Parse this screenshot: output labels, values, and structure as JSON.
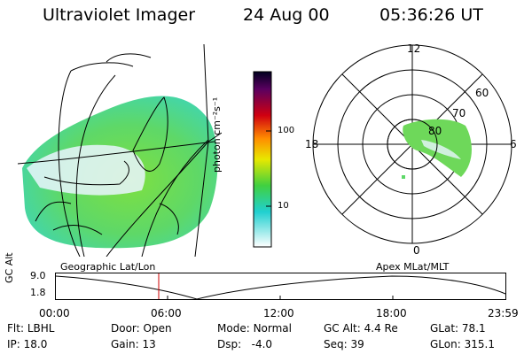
{
  "header": {
    "instrument": "Ultraviolet Imager",
    "date": "24 Aug 00",
    "time": "05:36:26 UT"
  },
  "colorbar": {
    "unit_label": "photon cm⁻²s⁻¹",
    "ticks": [
      "100",
      "10"
    ]
  },
  "polar": {
    "mlt_labels": {
      "top": "12",
      "left": "18",
      "right": "6",
      "bottom": "0"
    },
    "lat_labels": [
      "60",
      "70",
      "80"
    ]
  },
  "strip": {
    "left_caption": "Geographic Lat/Lon",
    "right_caption": "Apex MLat/MLT",
    "ylabel": "GC Alt",
    "y_ticks": [
      "9.0",
      "1.8"
    ],
    "time_ticks": [
      "00:00",
      "06:00",
      "12:00",
      "18:00",
      "23:59"
    ]
  },
  "info": {
    "row1": [
      {
        "label": "Flt:",
        "value": "LBHL"
      },
      {
        "label": "Door:",
        "value": "Open"
      },
      {
        "label": "Mode:",
        "value": "Normal"
      },
      {
        "label": "GC Alt:",
        "value": "4.4 Re"
      },
      {
        "label": "GLat:",
        "value": "78.1"
      }
    ],
    "row2": [
      {
        "label": "IP:",
        "value": "18.0"
      },
      {
        "label": "Gain:",
        "value": "13"
      },
      {
        "label": "Dsp:",
        "value": "  -4.0"
      },
      {
        "label": "Seq:",
        "value": "39"
      },
      {
        "label": "GLon:",
        "value": "315.1"
      }
    ]
  }
}
